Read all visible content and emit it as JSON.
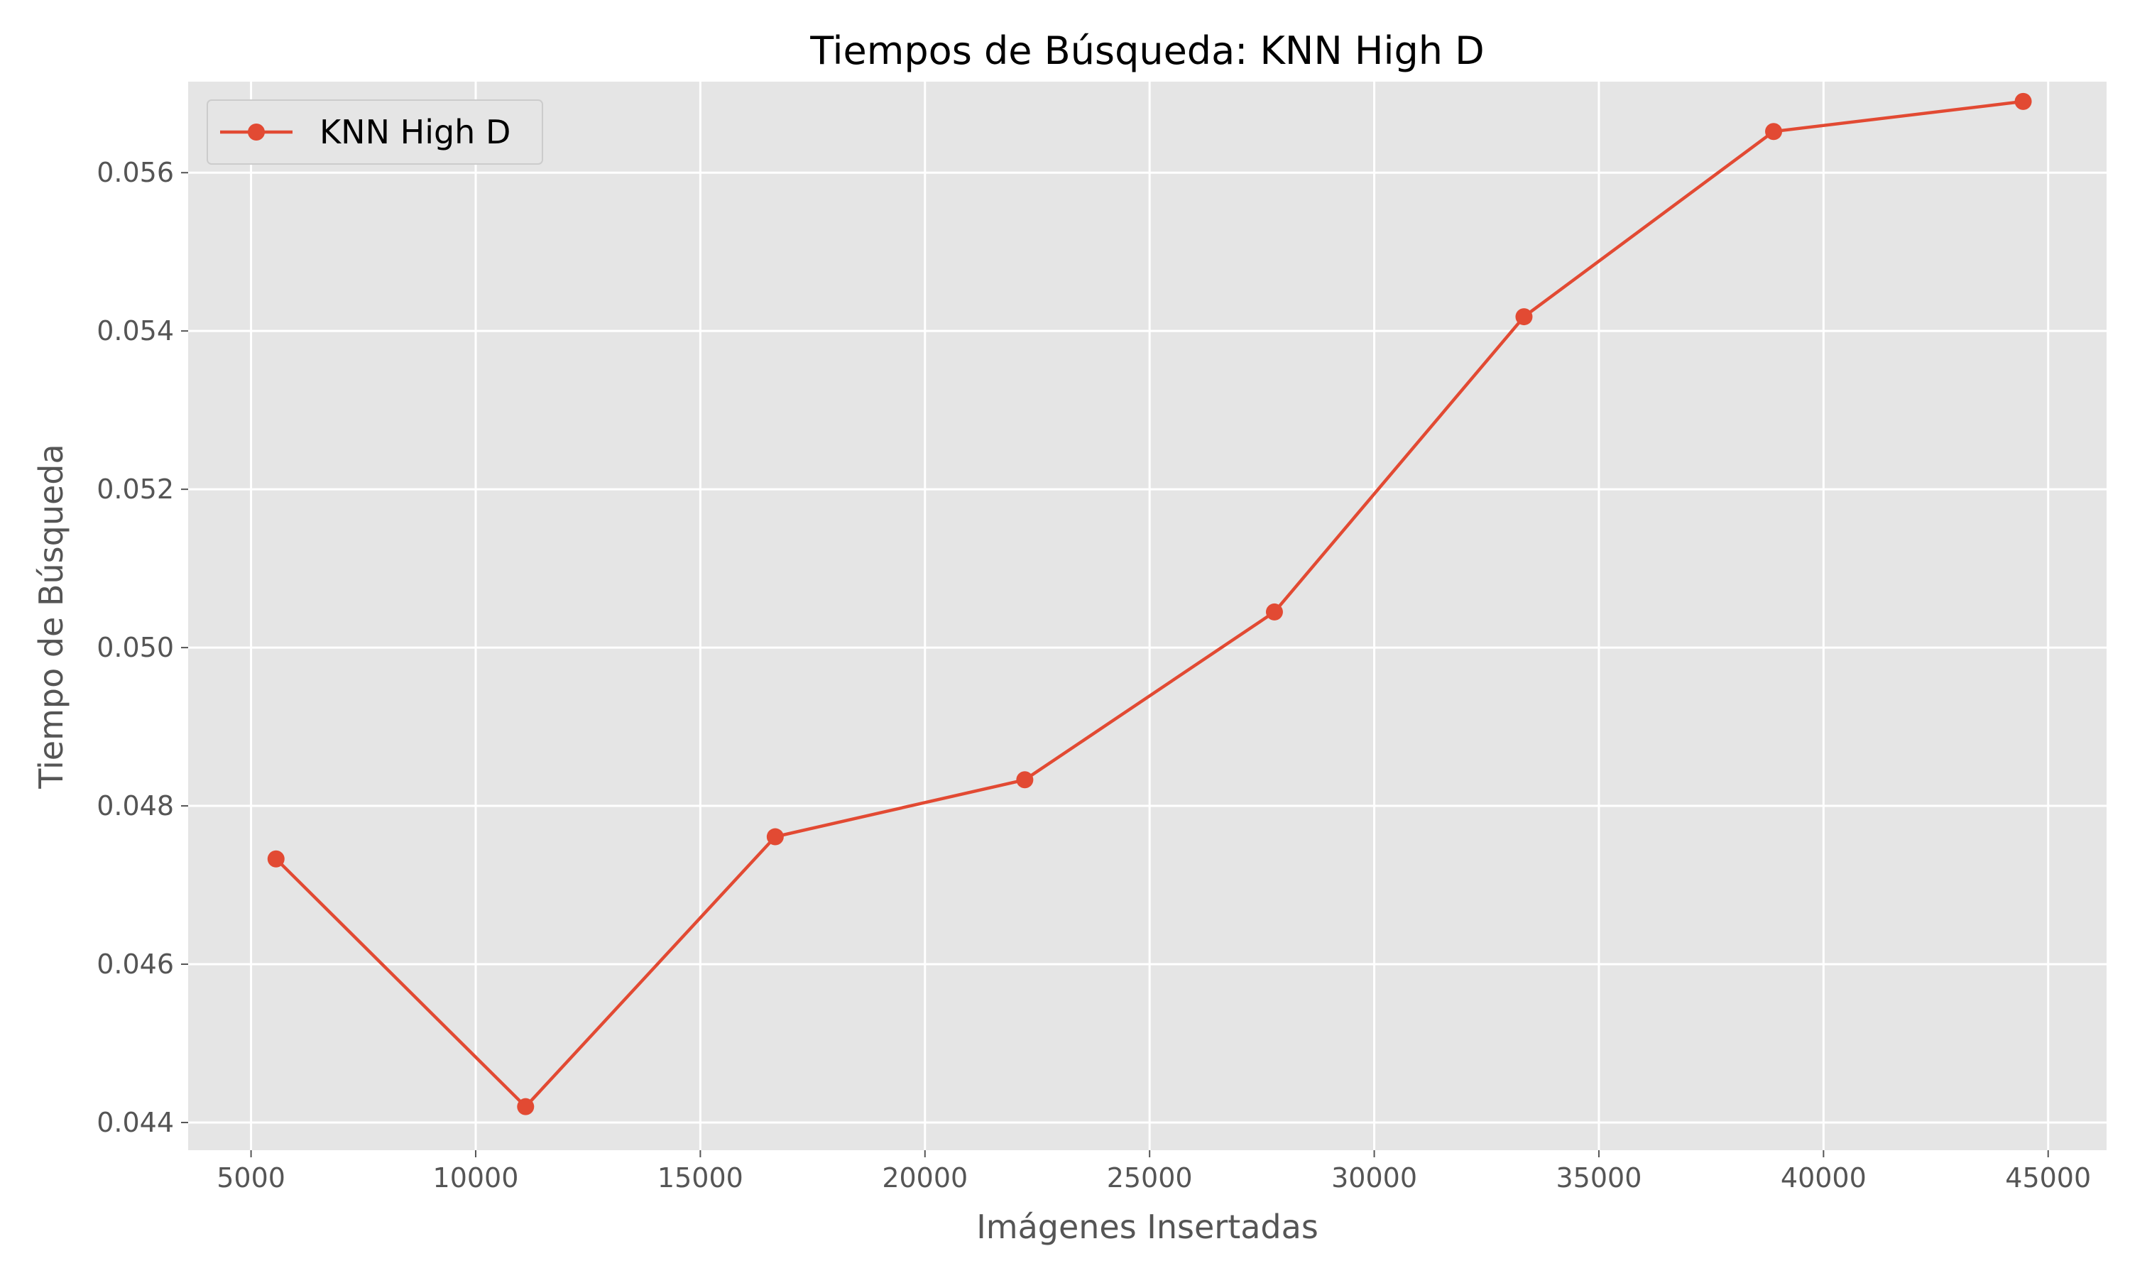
{
  "chart_data": {
    "type": "line",
    "title": "Tiempos de Búsqueda: KNN High D",
    "xlabel": "Imágenes Insertadas",
    "ylabel": "Tiempo de Búsqueda",
    "xlim": [
      3600,
      46300
    ],
    "ylim": [
      0.04365,
      0.05715
    ],
    "xticks": [
      5000,
      10000,
      15000,
      20000,
      25000,
      30000,
      35000,
      40000,
      45000
    ],
    "xtick_labels": [
      "5000",
      "10000",
      "15000",
      "20000",
      "25000",
      "30000",
      "35000",
      "40000",
      "45000"
    ],
    "yticks": [
      0.044,
      0.046,
      0.048,
      0.05,
      0.052,
      0.054,
      0.056
    ],
    "ytick_labels": [
      "0.044",
      "0.046",
      "0.048",
      "0.050",
      "0.052",
      "0.054",
      "0.056"
    ],
    "grid": true,
    "legend_position": "top-left",
    "colors": {
      "series": "#E24A33",
      "plot_background": "#E5E5E5",
      "grid": "#FFFFFF"
    },
    "series": [
      {
        "name": "KNN High D",
        "marker": "circle",
        "x": [
          5556,
          11111,
          16667,
          22222,
          27778,
          33333,
          38889,
          44444
        ],
        "y": [
          0.04733,
          0.0442,
          0.04761,
          0.04833,
          0.05045,
          0.05418,
          0.05652,
          0.0569
        ]
      }
    ]
  }
}
